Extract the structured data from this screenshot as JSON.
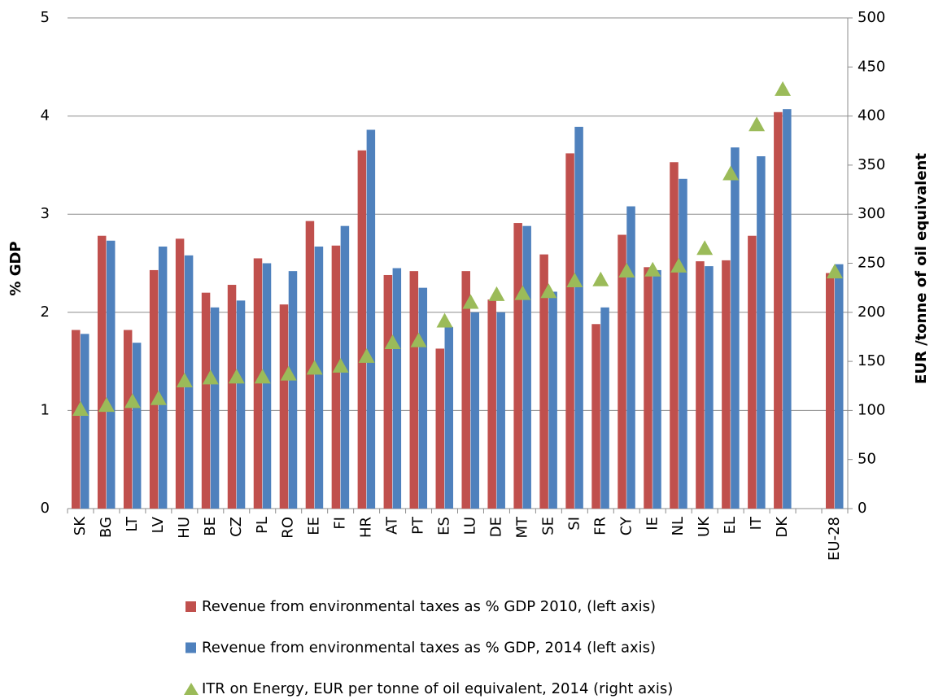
{
  "chart_data": {
    "type": "bar",
    "y_label": "% GDP",
    "y2_label": "EUR /tonne of oil equivalent",
    "categories": [
      "SK",
      "BG",
      "LT",
      "LV",
      "HU",
      "BE",
      "CZ",
      "PL",
      "RO",
      "EE",
      "FI",
      "HR",
      "AT",
      "PT",
      "ES",
      "LU",
      "DE",
      "MT",
      "SE",
      "SI",
      "FR",
      "CY",
      "IE",
      "NL",
      "UK",
      "EL",
      "IT",
      "DK",
      null,
      "EU-28"
    ],
    "series": [
      {
        "name": "Revenue from environmental taxes as % GDP 2010, (left axis)",
        "color": "#c0504d",
        "values": [
          1.82,
          2.78,
          1.82,
          2.43,
          2.75,
          2.2,
          2.28,
          2.55,
          2.08,
          2.93,
          2.68,
          3.65,
          2.38,
          2.42,
          1.63,
          2.42,
          2.13,
          2.91,
          2.59,
          3.62,
          1.88,
          2.79,
          2.46,
          3.53,
          2.52,
          2.53,
          2.78,
          4.04,
          null,
          2.4
        ]
      },
      {
        "name": "Revenue from environmental taxes as % GDP, 2014 (left axis)",
        "color": "#4f81bd",
        "values": [
          1.78,
          2.73,
          1.69,
          2.67,
          2.58,
          2.05,
          2.12,
          2.5,
          2.42,
          2.67,
          2.88,
          3.86,
          2.45,
          2.25,
          1.85,
          2.0,
          2.0,
          2.88,
          2.21,
          3.89,
          2.05,
          3.08,
          2.43,
          3.36,
          2.47,
          3.68,
          3.59,
          4.07,
          null,
          2.49
        ]
      },
      {
        "name": "ITR on Energy, EUR per tonne of oil equivalent, 2014 (right axis)",
        "color": "#9bbb59",
        "axis": "y2",
        "marker": "triangle",
        "values": [
          102,
          106,
          110,
          113,
          131,
          134,
          135,
          135,
          138,
          144,
          146,
          156,
          170,
          172,
          192,
          211,
          219,
          220,
          222,
          233,
          234,
          243,
          244,
          248,
          266,
          342,
          392,
          428,
          null,
          242
        ]
      }
    ],
    "ylim": [
      0,
      5
    ],
    "yticks": [
      0,
      1,
      2,
      3,
      4,
      5
    ],
    "y2lim": [
      0,
      500
    ],
    "y2ticks": [
      0,
      50,
      100,
      150,
      200,
      250,
      300,
      350,
      400,
      450,
      500
    ],
    "grid": true
  }
}
